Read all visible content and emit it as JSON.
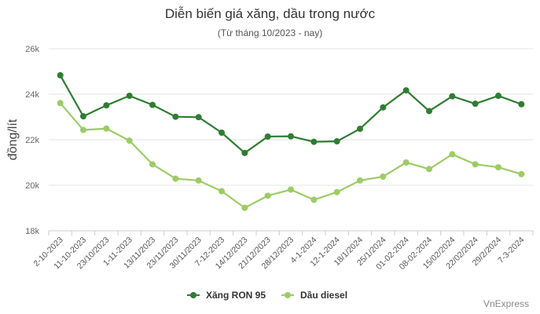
{
  "chart_data": {
    "type": "line",
    "title": "Diễn biến giá xăng, dầu trong nước",
    "subtitle": "(Từ tháng 10/2023 - nay)",
    "ylabel": "đồng/lít",
    "xlabel": "",
    "ylim": [
      18000,
      26000
    ],
    "yticks": [
      18000,
      20000,
      22000,
      24000,
      26000
    ],
    "ytick_labels": [
      "18k",
      "20k",
      "22k",
      "24k",
      "26k"
    ],
    "grid": true,
    "legend_position": "bottom-center",
    "categories": [
      "2-10-2023",
      "11-10-2023",
      "23/10/2023",
      "1-11-2023",
      "13/11/2023",
      "23/11/2023",
      "30/11/2023",
      "7-12-2023",
      "14/12/2023",
      "21/12/2023",
      "28/12/2023",
      "4-1-2024",
      "12-1-2024",
      "18/1/2024",
      "25/1/2024",
      "01-02-2024",
      "08-02-2024",
      "15/02/2024",
      "22/02/2024",
      "29/2/2024",
      "7-3-2024"
    ],
    "series": [
      {
        "name": "Xăng RON 95",
        "color": "#2e7d32",
        "values": [
          24830,
          23030,
          23510,
          23930,
          23530,
          23010,
          22990,
          22310,
          21420,
          22140,
          22150,
          21910,
          21930,
          22480,
          23420,
          24170,
          23260,
          23910,
          23580,
          23930,
          23560
        ]
      },
      {
        "name": "Dầu diesel",
        "color": "#9ccc65",
        "values": [
          23610,
          22430,
          22490,
          21960,
          20920,
          20290,
          20210,
          19740,
          19010,
          19540,
          19810,
          19360,
          19700,
          20210,
          20380,
          21000,
          20710,
          21360,
          20920,
          20790,
          20490
        ]
      }
    ]
  },
  "source": "VnExpress"
}
